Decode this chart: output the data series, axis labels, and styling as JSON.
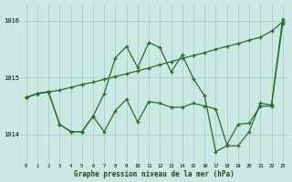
{
  "bg_color": "#cce8e4",
  "grid_color": "#9ec8c8",
  "line_color": "#2d6b2d",
  "xlabel": "Graphe pression niveau de la mer (hPa)",
  "xticks": [
    0,
    1,
    2,
    3,
    4,
    5,
    6,
    7,
    8,
    9,
    10,
    11,
    12,
    13,
    14,
    15,
    16,
    17,
    18,
    19,
    20,
    21,
    22,
    23
  ],
  "yticks": [
    1014,
    1015,
    1016
  ],
  "xlim": [
    -0.5,
    23.5
  ],
  "ylim": [
    1013.5,
    1016.3
  ],
  "line1_y": [
    1014.65,
    1014.72,
    1014.75,
    1014.78,
    1014.83,
    1014.88,
    1014.92,
    1014.97,
    1015.02,
    1015.07,
    1015.12,
    1015.17,
    1015.23,
    1015.28,
    1015.34,
    1015.39,
    1015.44,
    1015.5,
    1015.55,
    1015.6,
    1015.66,
    1015.71,
    1015.82,
    1015.98
  ],
  "line2_y": [
    1014.65,
    1014.72,
    1014.75,
    1014.18,
    1014.05,
    1014.05,
    1014.32,
    1014.72,
    1015.35,
    1015.55,
    1015.18,
    1015.62,
    1015.53,
    1015.1,
    1015.4,
    1014.98,
    1014.68,
    1013.7,
    1013.8,
    1013.8,
    1014.05,
    1014.55,
    1014.52,
    1016.03
  ],
  "line3_y": [
    1014.65,
    1014.72,
    1014.75,
    1014.18,
    1014.05,
    1014.05,
    1014.32,
    1014.05,
    1014.42,
    1014.62,
    1014.22,
    1014.58,
    1014.55,
    1014.48,
    1014.48,
    1014.55,
    1014.5,
    1014.45,
    1013.82,
    1014.18,
    1014.2,
    1014.5,
    1014.5,
    1015.95
  ]
}
